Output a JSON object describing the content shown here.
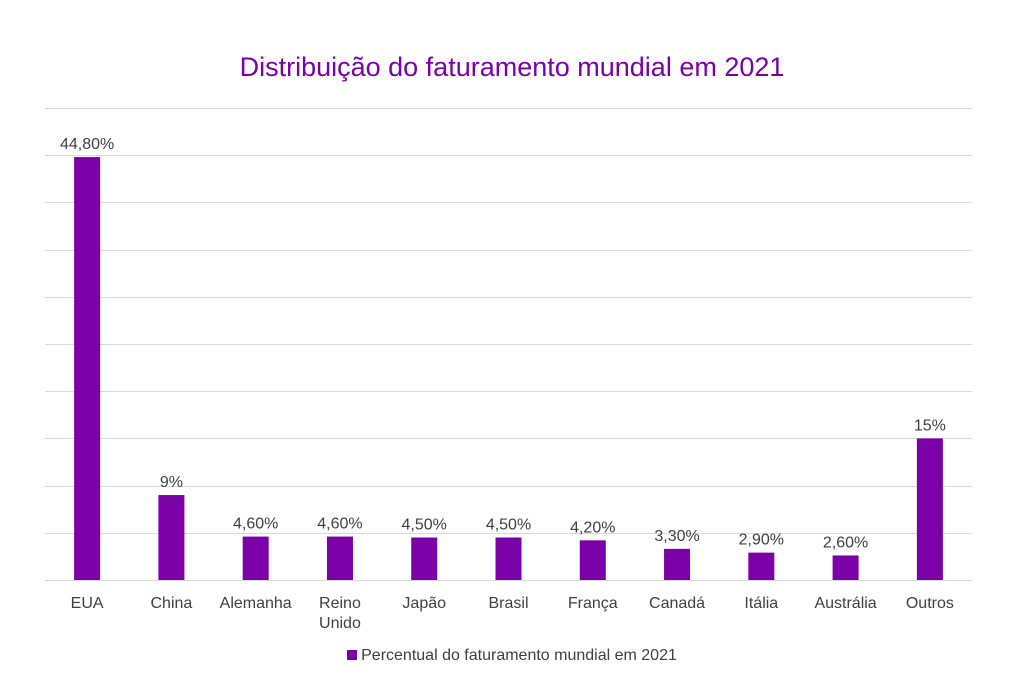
{
  "colors": {
    "bar": "#7B00A8",
    "title": "#7B00A8",
    "grid": "#d9d9d9",
    "text": "#404040"
  },
  "chart_data": {
    "type": "bar",
    "title": "Distribuição do faturamento mundial em 2021",
    "categories": [
      [
        "EUA"
      ],
      [
        "China"
      ],
      [
        "Alemanha"
      ],
      [
        "Reino",
        "Unido"
      ],
      [
        "Japão"
      ],
      [
        "Brasil"
      ],
      [
        "França"
      ],
      [
        "Canadá"
      ],
      [
        "Itália"
      ],
      [
        "Austrália"
      ],
      [
        "Outros"
      ]
    ],
    "series": [
      {
        "name": "Percentual do faturamento mundial em 2021",
        "values": [
          44.8,
          9,
          4.6,
          4.6,
          4.5,
          4.5,
          4.2,
          3.3,
          2.9,
          2.6,
          15
        ],
        "labels": [
          "44,80%",
          "9%",
          "4,60%",
          "4,60%",
          "4,50%",
          "4,50%",
          "4,20%",
          "3,30%",
          "2,90%",
          "2,60%",
          "15%"
        ]
      }
    ],
    "ylim": [
      0,
      50
    ],
    "grid": true,
    "y_gridline_step": 5,
    "legend_position": "bottom"
  }
}
